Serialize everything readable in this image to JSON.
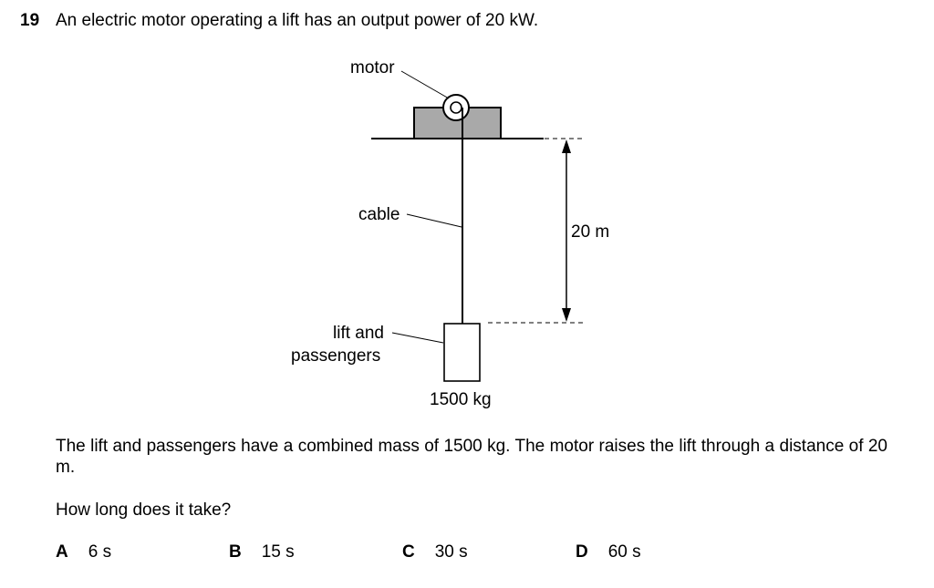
{
  "question": {
    "number": "19",
    "stem": "An electric motor operating a lift has an output power of 20 kW.",
    "paragraph": "The lift and passengers have a combined mass of 1500 kg. The motor raises the lift through a distance of 20 m.",
    "prompt": "How long does it take?"
  },
  "diagram": {
    "motor_label": "motor",
    "cable_label": "cable",
    "lift_label_line1": "lift and",
    "lift_label_line2": "passengers",
    "height_label": "20 m",
    "mass_label": "1500 kg",
    "motor_color": "#a9a9a9"
  },
  "options": [
    {
      "letter": "A",
      "value": "6 s"
    },
    {
      "letter": "B",
      "value": "15 s"
    },
    {
      "letter": "C",
      "value": "30 s"
    },
    {
      "letter": "D",
      "value": "60 s"
    }
  ]
}
